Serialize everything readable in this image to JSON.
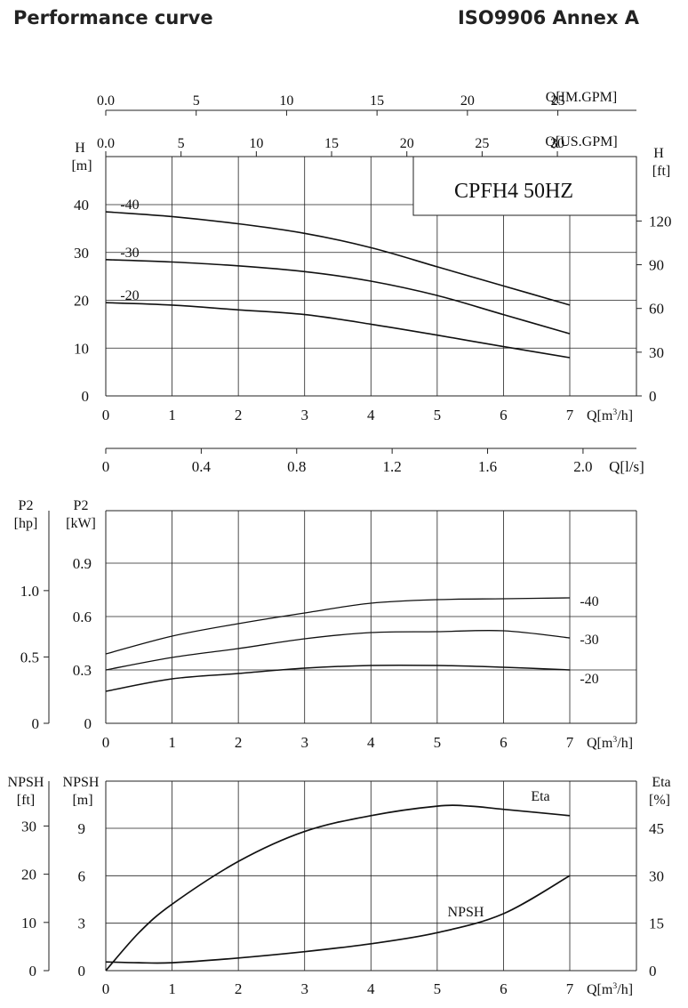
{
  "header": {
    "title": "Performance curve",
    "standard": "ISO9906 Annex A"
  },
  "model_label": "CPFH4  50HZ",
  "chart_data": [
    {
      "type": "line",
      "name": "head",
      "xlabel": "Q[m³/h]",
      "ylabel": "H [m]",
      "ylabel_right": "H [ft]",
      "xlim": [
        0,
        7
      ],
      "ylim": [
        0,
        50
      ],
      "grid": true,
      "x_ticks": [
        "0",
        "1",
        "2",
        "3",
        "4",
        "5",
        "6",
        "7"
      ],
      "y_ticks": [
        "0",
        "10",
        "20",
        "30",
        "40"
      ],
      "y_ticks_right": [
        "0",
        "30",
        "60",
        "90",
        "120"
      ],
      "secondary_axes": {
        "us_gpm": {
          "label": "Q[US.GPM]",
          "ticks": [
            "0.0",
            "5",
            "10",
            "15",
            "20",
            "25",
            "30"
          ]
        },
        "im_gpm": {
          "label": "Q[IM.GPM]",
          "ticks": [
            "0.0",
            "5",
            "10",
            "15",
            "20",
            "25"
          ]
        },
        "ls": {
          "label": "Q[l/s]",
          "ticks": [
            "0",
            "0.4",
            "0.8",
            "1.2",
            "1.6",
            "2.0"
          ]
        }
      },
      "series": [
        {
          "name": "-40",
          "x": [
            0,
            1,
            2,
            3,
            4,
            5,
            6,
            7
          ],
          "y": [
            38.5,
            37.5,
            36,
            34,
            31,
            27,
            23,
            19
          ]
        },
        {
          "name": "-30",
          "x": [
            0,
            1,
            2,
            3,
            4,
            5,
            6,
            7
          ],
          "y": [
            28.5,
            28,
            27.2,
            26,
            24,
            21,
            17,
            13
          ]
        },
        {
          "name": "-20",
          "x": [
            0,
            1,
            2,
            3,
            4,
            5,
            6,
            7
          ],
          "y": [
            19.5,
            19,
            18,
            17,
            15,
            12.7,
            10.3,
            8
          ]
        }
      ]
    },
    {
      "type": "line",
      "name": "power",
      "xlabel": "Q[m³/h]",
      "ylabel": "P2 [kW]",
      "ylabel_left": "P2 [hp]",
      "xlim": [
        0,
        7
      ],
      "ylim": [
        0,
        1.2
      ],
      "grid": true,
      "x_ticks": [
        "0",
        "1",
        "2",
        "3",
        "4",
        "5",
        "6",
        "7"
      ],
      "y_ticks": [
        "0",
        "0.3",
        "0.6",
        "0.9"
      ],
      "y_ticks_hp": [
        "0",
        "0.5",
        "1.0"
      ],
      "series": [
        {
          "name": "-40",
          "x": [
            0,
            1,
            2,
            3,
            4,
            5,
            6,
            7
          ],
          "y": [
            0.39,
            0.49,
            0.56,
            0.62,
            0.675,
            0.695,
            0.7,
            0.705
          ]
        },
        {
          "name": "-30",
          "x": [
            0,
            1,
            2,
            3,
            4,
            5,
            6,
            7
          ],
          "y": [
            0.3,
            0.37,
            0.42,
            0.475,
            0.51,
            0.515,
            0.52,
            0.48
          ]
        },
        {
          "name": "-20",
          "x": [
            0,
            1,
            2,
            3,
            4,
            5,
            6,
            7
          ],
          "y": [
            0.18,
            0.25,
            0.28,
            0.31,
            0.325,
            0.325,
            0.315,
            0.3
          ]
        }
      ]
    },
    {
      "type": "line",
      "name": "npsh-eta",
      "xlabel": "Q[m³/h]",
      "ylabel": "NPSH [m]",
      "ylabel_left": "NPSH [ft]",
      "ylabel_right": "Eta [%]",
      "xlim": [
        0,
        7
      ],
      "ylim": [
        0,
        12
      ],
      "grid": true,
      "x_ticks": [
        "0",
        "1",
        "2",
        "3",
        "4",
        "5",
        "6",
        "7"
      ],
      "y_ticks": [
        "0",
        "3",
        "6",
        "9"
      ],
      "y_ticks_ft": [
        "0",
        "10",
        "20",
        "30"
      ],
      "y_ticks_right": [
        "0",
        "15",
        "30",
        "45"
      ],
      "series": [
        {
          "name": "Eta",
          "x": [
            0,
            0.5,
            1,
            2,
            3,
            4,
            5,
            5.5,
            6,
            7
          ],
          "y": [
            0,
            12,
            21,
            34.5,
            44,
            49,
            52,
            52,
            51,
            49
          ]
        },
        {
          "name": "NPSH",
          "x": [
            0,
            0.5,
            1,
            2,
            3,
            4,
            5,
            6,
            7
          ],
          "y": [
            0.55,
            0.5,
            0.5,
            0.8,
            1.2,
            1.7,
            2.4,
            3.6,
            6
          ]
        }
      ]
    }
  ]
}
